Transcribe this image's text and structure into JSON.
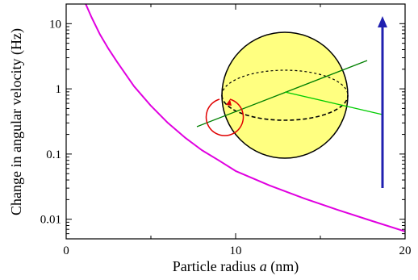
{
  "chart_data": {
    "type": "line",
    "xlabel": "Particle radius a (nm)",
    "xlabel_parts": {
      "prefix": "Particle radius ",
      "variable": "a",
      "suffix": " (nm)"
    },
    "ylabel": "Change in angular velocity (Hz)",
    "xlim": [
      0,
      20
    ],
    "ylim": [
      0.005,
      20
    ],
    "y_scale": "log",
    "grid": false,
    "x_ticks": [
      {
        "value": 0,
        "label": "0"
      },
      {
        "value": 10,
        "label": "10"
      },
      {
        "value": 20,
        "label": "20"
      }
    ],
    "y_ticks": [
      {
        "value": 0.01,
        "label": "0.01"
      },
      {
        "value": 0.1,
        "label": "0.1"
      },
      {
        "value": 1,
        "label": "1"
      },
      {
        "value": 10,
        "label": "10"
      }
    ],
    "series": [
      {
        "color": "#e000e0",
        "x": [
          1.15,
          1.5,
          2,
          2.5,
          3,
          4,
          5,
          6,
          7,
          8,
          9,
          10,
          12,
          14,
          16,
          18,
          20
        ],
        "y": [
          20,
          12.5,
          6.8,
          4.1,
          2.6,
          1.1,
          0.55,
          0.3,
          0.18,
          0.115,
          0.08,
          0.055,
          0.033,
          0.021,
          0.014,
          0.0095,
          0.0065
        ]
      }
    ],
    "inset": {
      "sphere_color": "#ffff80",
      "axis_line_color": "#008000",
      "radius_line_color": "#00cc00",
      "rotation_arrow_color": "#e00000",
      "velocity_arrow_color": "#2020b0"
    }
  }
}
